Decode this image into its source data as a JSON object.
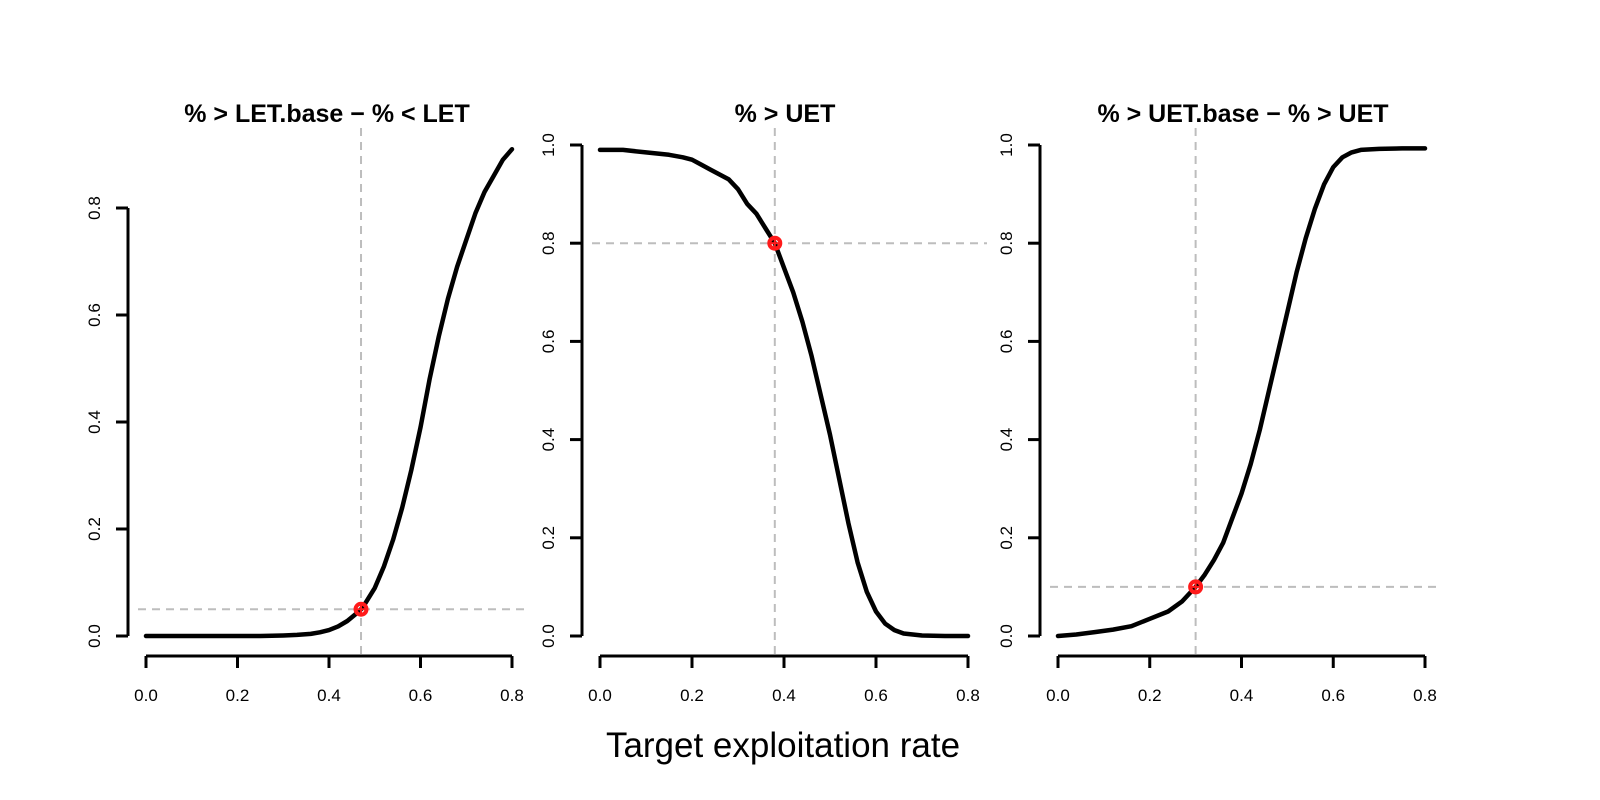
{
  "chart_data": [
    {
      "type": "line",
      "title": "% > LET.base − % < LET",
      "xlim": [
        0.0,
        0.8
      ],
      "ylim": [
        0.0,
        0.8
      ],
      "x_ticks": [
        "0.0",
        "0.2",
        "0.4",
        "0.6",
        "0.8"
      ],
      "y_ticks": [
        "0.0",
        "0.2",
        "0.4",
        "0.6",
        "0.8"
      ],
      "grid": false,
      "reference_lines": {
        "vertical_x": 0.47,
        "horizontal_y": 0.05
      },
      "marker": {
        "x": 0.47,
        "y": 0.05,
        "color": "#ff1a1a"
      },
      "series": [
        {
          "x": [
            0.0,
            0.05,
            0.1,
            0.15,
            0.2,
            0.25,
            0.3,
            0.33,
            0.36,
            0.38,
            0.4,
            0.42,
            0.44,
            0.46,
            0.47,
            0.48,
            0.5,
            0.52,
            0.54,
            0.56,
            0.58,
            0.6,
            0.62,
            0.64,
            0.66,
            0.68,
            0.7,
            0.72,
            0.74,
            0.76,
            0.78,
            0.8
          ],
          "y": [
            0.0,
            0.0,
            0.0,
            0.0,
            0.0,
            0.0,
            0.001,
            0.002,
            0.004,
            0.007,
            0.011,
            0.018,
            0.028,
            0.042,
            0.05,
            0.062,
            0.09,
            0.13,
            0.18,
            0.24,
            0.31,
            0.39,
            0.48,
            0.56,
            0.63,
            0.69,
            0.74,
            0.79,
            0.83,
            0.86,
            0.89,
            0.91
          ]
        }
      ]
    },
    {
      "type": "line",
      "title": "% > UET",
      "xlim": [
        0.0,
        0.8
      ],
      "ylim": [
        0.0,
        1.0
      ],
      "x_ticks": [
        "0.0",
        "0.2",
        "0.4",
        "0.6",
        "0.8"
      ],
      "y_ticks": [
        "0.0",
        "0.2",
        "0.4",
        "0.6",
        "0.8",
        "1.0"
      ],
      "grid": false,
      "reference_lines": {
        "vertical_x": 0.38,
        "horizontal_y": 0.8
      },
      "marker": {
        "x": 0.38,
        "y": 0.8,
        "color": "#ff1a1a"
      },
      "series": [
        {
          "x": [
            0.0,
            0.05,
            0.1,
            0.15,
            0.18,
            0.2,
            0.22,
            0.24,
            0.26,
            0.28,
            0.3,
            0.32,
            0.34,
            0.36,
            0.38,
            0.4,
            0.42,
            0.44,
            0.46,
            0.48,
            0.5,
            0.52,
            0.54,
            0.56,
            0.58,
            0.6,
            0.62,
            0.64,
            0.66,
            0.7,
            0.75,
            0.8
          ],
          "y": [
            0.99,
            0.99,
            0.985,
            0.98,
            0.975,
            0.97,
            0.96,
            0.95,
            0.94,
            0.93,
            0.91,
            0.88,
            0.86,
            0.83,
            0.8,
            0.75,
            0.7,
            0.64,
            0.57,
            0.49,
            0.41,
            0.32,
            0.23,
            0.15,
            0.09,
            0.05,
            0.025,
            0.012,
            0.005,
            0.001,
            0.0,
            0.0
          ]
        }
      ]
    },
    {
      "type": "line",
      "title": "% > UET.base − % > UET",
      "xlim": [
        0.0,
        0.8
      ],
      "ylim": [
        0.0,
        1.0
      ],
      "x_ticks": [
        "0.0",
        "0.2",
        "0.4",
        "0.6",
        "0.8"
      ],
      "y_ticks": [
        "0.0",
        "0.2",
        "0.4",
        "0.6",
        "0.8",
        "1.0"
      ],
      "grid": false,
      "reference_lines": {
        "vertical_x": 0.3,
        "horizontal_y": 0.1
      },
      "marker": {
        "x": 0.3,
        "y": 0.1,
        "color": "#ff1a1a"
      },
      "series": [
        {
          "x": [
            0.0,
            0.04,
            0.08,
            0.12,
            0.16,
            0.2,
            0.24,
            0.27,
            0.3,
            0.32,
            0.34,
            0.36,
            0.38,
            0.4,
            0.42,
            0.44,
            0.46,
            0.48,
            0.5,
            0.52,
            0.54,
            0.56,
            0.58,
            0.6,
            0.62,
            0.64,
            0.66,
            0.7,
            0.75,
            0.8
          ],
          "y": [
            0.0,
            0.003,
            0.008,
            0.013,
            0.02,
            0.035,
            0.05,
            0.07,
            0.1,
            0.125,
            0.155,
            0.19,
            0.24,
            0.29,
            0.35,
            0.42,
            0.5,
            0.58,
            0.66,
            0.74,
            0.81,
            0.87,
            0.92,
            0.955,
            0.975,
            0.985,
            0.99,
            0.992,
            0.993,
            0.993
          ]
        }
      ]
    }
  ],
  "xlabel": "Target exploitation rate"
}
